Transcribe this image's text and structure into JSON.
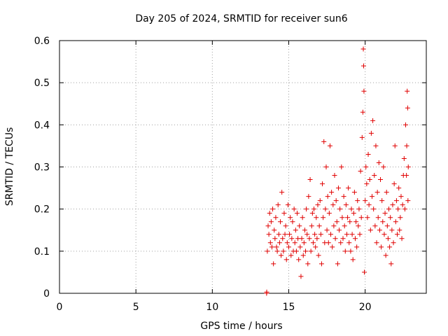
{
  "chart_data": {
    "type": "scatter",
    "title": "Day 205 of 2024, SRMTID for receiver sun6",
    "xlabel": "GPS time / hours",
    "ylabel": "SRMTID / TECUs",
    "xlim": [
      0,
      24
    ],
    "ylim": [
      0,
      0.6
    ],
    "x_ticks": [
      0,
      5,
      10,
      15,
      20
    ],
    "x_tick_labels": [
      "0",
      "5",
      "10",
      "15",
      "20"
    ],
    "y_ticks": [
      0,
      0.1,
      0.2,
      0.3,
      0.4,
      0.5,
      0.6
    ],
    "y_tick_labels": [
      "0",
      "0.1",
      "0.2",
      "0.3",
      "0.4",
      "0.5",
      "0.6"
    ],
    "grid": true,
    "marker": "+",
    "color": "#e00000",
    "series": [
      {
        "name": "SRMTID",
        "points": [
          [
            13.55,
            0.0
          ],
          [
            13.56,
            0.003
          ],
          [
            13.6,
            0.1
          ],
          [
            13.65,
            0.16
          ],
          [
            13.7,
            0.14
          ],
          [
            13.75,
            0.19
          ],
          [
            13.8,
            0.12
          ],
          [
            13.85,
            0.17
          ],
          [
            13.9,
            0.11
          ],
          [
            13.95,
            0.2
          ],
          [
            14.0,
            0.07
          ],
          [
            14.05,
            0.15
          ],
          [
            14.1,
            0.13
          ],
          [
            14.15,
            0.18
          ],
          [
            14.2,
            0.11
          ],
          [
            14.25,
            0.1
          ],
          [
            14.3,
            0.21
          ],
          [
            14.35,
            0.14
          ],
          [
            14.4,
            0.12
          ],
          [
            14.45,
            0.17
          ],
          [
            14.5,
            0.09
          ],
          [
            14.55,
            0.24
          ],
          [
            14.6,
            0.13
          ],
          [
            14.65,
            0.1
          ],
          [
            14.7,
            0.19
          ],
          [
            14.75,
            0.14
          ],
          [
            14.8,
            0.16
          ],
          [
            14.85,
            0.08
          ],
          [
            14.9,
            0.12
          ],
          [
            14.95,
            0.21
          ],
          [
            15.0,
            0.11
          ],
          [
            15.05,
            0.14
          ],
          [
            15.1,
            0.18
          ],
          [
            15.15,
            0.09
          ],
          [
            15.2,
            0.13
          ],
          [
            15.25,
            0.17
          ],
          [
            15.3,
            0.1
          ],
          [
            15.35,
            0.2
          ],
          [
            15.4,
            0.12
          ],
          [
            15.45,
            0.15
          ],
          [
            15.5,
            0.1
          ],
          [
            15.55,
            0.19
          ],
          [
            15.6,
            0.13
          ],
          [
            15.65,
            0.08
          ],
          [
            15.7,
            0.16
          ],
          [
            15.75,
            0.11
          ],
          [
            15.8,
            0.04
          ],
          [
            15.85,
            0.13
          ],
          [
            15.9,
            0.18
          ],
          [
            15.95,
            0.09
          ],
          [
            16.0,
            0.12
          ],
          [
            16.05,
            0.15
          ],
          [
            16.1,
            0.1
          ],
          [
            16.15,
            0.2
          ],
          [
            16.2,
            0.14
          ],
          [
            16.25,
            0.07
          ],
          [
            16.3,
            0.23
          ],
          [
            16.35,
            0.13
          ],
          [
            16.4,
            0.27
          ],
          [
            16.45,
            0.1
          ],
          [
            16.5,
            0.16
          ],
          [
            16.55,
            0.19
          ],
          [
            16.6,
            0.12
          ],
          [
            16.65,
            0.2
          ],
          [
            16.7,
            0.14
          ],
          [
            16.75,
            0.11
          ],
          [
            16.8,
            0.18
          ],
          [
            16.85,
            0.13
          ],
          [
            16.9,
            0.21
          ],
          [
            16.95,
            0.09
          ],
          [
            17.0,
            0.16
          ],
          [
            17.05,
            0.22
          ],
          [
            17.1,
            0.14
          ],
          [
            17.15,
            0.07
          ],
          [
            17.2,
            0.26
          ],
          [
            17.25,
            0.18
          ],
          [
            17.3,
            0.36
          ],
          [
            17.35,
            0.12
          ],
          [
            17.4,
            0.2
          ],
          [
            17.45,
            0.3
          ],
          [
            17.5,
            0.15
          ],
          [
            17.55,
            0.23
          ],
          [
            17.6,
            0.12
          ],
          [
            17.65,
            0.19
          ],
          [
            17.7,
            0.35
          ],
          [
            17.75,
            0.14
          ],
          [
            17.8,
            0.24
          ],
          [
            17.85,
            0.11
          ],
          [
            17.9,
            0.21
          ],
          [
            17.95,
            0.16
          ],
          [
            18.0,
            0.28
          ],
          [
            18.05,
            0.13
          ],
          [
            18.1,
            0.22
          ],
          [
            18.15,
            0.17
          ],
          [
            18.2,
            0.07
          ],
          [
            18.25,
            0.25
          ],
          [
            18.3,
            0.15
          ],
          [
            18.35,
            0.2
          ],
          [
            18.4,
            0.12
          ],
          [
            18.45,
            0.3
          ],
          [
            18.5,
            0.18
          ],
          [
            18.55,
            0.13
          ],
          [
            18.6,
            0.23
          ],
          [
            18.65,
            0.16
          ],
          [
            18.7,
            0.1
          ],
          [
            18.75,
            0.21
          ],
          [
            18.8,
            0.14
          ],
          [
            18.85,
            0.18
          ],
          [
            18.9,
            0.25
          ],
          [
            18.95,
            0.12
          ],
          [
            19.0,
            0.17
          ],
          [
            19.05,
            0.1
          ],
          [
            19.1,
            0.2
          ],
          [
            19.15,
            0.14
          ],
          [
            19.2,
            0.08
          ],
          [
            19.25,
            0.19
          ],
          [
            19.3,
            0.24
          ],
          [
            19.35,
            0.13
          ],
          [
            19.4,
            0.17
          ],
          [
            19.45,
            0.11
          ],
          [
            19.5,
            0.22
          ],
          [
            19.55,
            0.16
          ],
          [
            19.6,
            0.2
          ],
          [
            19.65,
            0.14
          ],
          [
            19.7,
            0.29
          ],
          [
            19.75,
            0.18
          ],
          [
            19.8,
            0.37
          ],
          [
            19.85,
            0.43
          ],
          [
            19.88,
            0.58
          ],
          [
            19.9,
            0.54
          ],
          [
            19.92,
            0.48
          ],
          [
            19.95,
            0.05
          ],
          [
            20.0,
            0.22
          ],
          [
            20.05,
            0.3
          ],
          [
            20.1,
            0.26
          ],
          [
            20.15,
            0.18
          ],
          [
            20.2,
            0.33
          ],
          [
            20.25,
            0.21
          ],
          [
            20.3,
            0.27
          ],
          [
            20.35,
            0.15
          ],
          [
            20.4,
            0.38
          ],
          [
            20.45,
            0.23
          ],
          [
            20.5,
            0.41
          ],
          [
            20.55,
            0.2
          ],
          [
            20.6,
            0.28
          ],
          [
            20.65,
            0.16
          ],
          [
            20.7,
            0.35
          ],
          [
            20.75,
            0.12
          ],
          [
            20.8,
            0.24
          ],
          [
            20.85,
            0.18
          ],
          [
            20.9,
            0.31
          ],
          [
            20.95,
            0.15
          ],
          [
            21.0,
            0.27
          ],
          [
            21.05,
            0.11
          ],
          [
            21.1,
            0.22
          ],
          [
            21.15,
            0.17
          ],
          [
            21.2,
            0.3
          ],
          [
            21.25,
            0.14
          ],
          [
            21.3,
            0.19
          ],
          [
            21.35,
            0.09
          ],
          [
            21.4,
            0.24
          ],
          [
            21.45,
            0.16
          ],
          [
            21.5,
            0.13
          ],
          [
            21.55,
            0.2
          ],
          [
            21.6,
            0.11
          ],
          [
            21.65,
            0.18
          ],
          [
            21.7,
            0.07
          ],
          [
            21.75,
            0.15
          ],
          [
            21.8,
            0.21
          ],
          [
            21.85,
            0.12
          ],
          [
            21.9,
            0.26
          ],
          [
            21.95,
            0.35
          ],
          [
            22.0,
            0.17
          ],
          [
            22.05,
            0.22
          ],
          [
            22.1,
            0.14
          ],
          [
            22.15,
            0.2
          ],
          [
            22.2,
            0.25
          ],
          [
            22.25,
            0.15
          ],
          [
            22.3,
            0.18
          ],
          [
            22.35,
            0.23
          ],
          [
            22.4,
            0.13
          ],
          [
            22.45,
            0.21
          ],
          [
            22.5,
            0.28
          ],
          [
            22.55,
            0.32
          ],
          [
            22.6,
            0.2
          ],
          [
            22.65,
            0.4
          ],
          [
            22.7,
            0.28
          ],
          [
            22.72,
            0.35
          ],
          [
            22.75,
            0.48
          ],
          [
            22.78,
            0.44
          ],
          [
            22.8,
            0.22
          ],
          [
            22.82,
            0.3
          ]
        ]
      }
    ]
  }
}
